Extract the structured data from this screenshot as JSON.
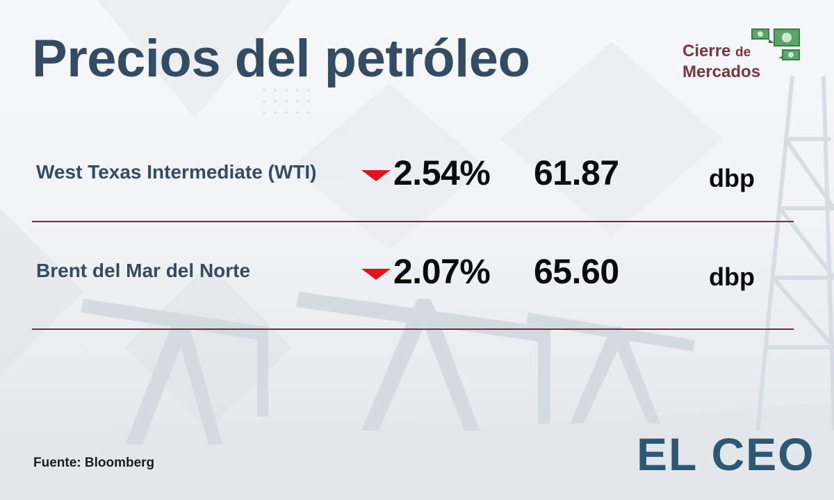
{
  "title": "Precios del petróleo",
  "badge": {
    "line1": "Cierre",
    "line1_small": "de",
    "line2": "Mercados",
    "icon": "money-bills-icon"
  },
  "rows": [
    {
      "name": "West Texas Intermediate (WTI)",
      "direction": "down",
      "change": "2.54%",
      "price": "61.87",
      "unit": "dbp"
    },
    {
      "name": "Brent del Mar del Norte",
      "direction": "down",
      "change": "2.07%",
      "price": "65.60",
      "unit": "dbp"
    }
  ],
  "source": "Fuente: Bloomberg",
  "logo": {
    "text": "EL CEO"
  },
  "colors": {
    "title": "#344c63",
    "accent_down": "#e3131b",
    "divider": "#6e2d3a",
    "badge": "#7a3640",
    "logo": "#2b5872",
    "logo_accent": "#3aa9b0"
  }
}
